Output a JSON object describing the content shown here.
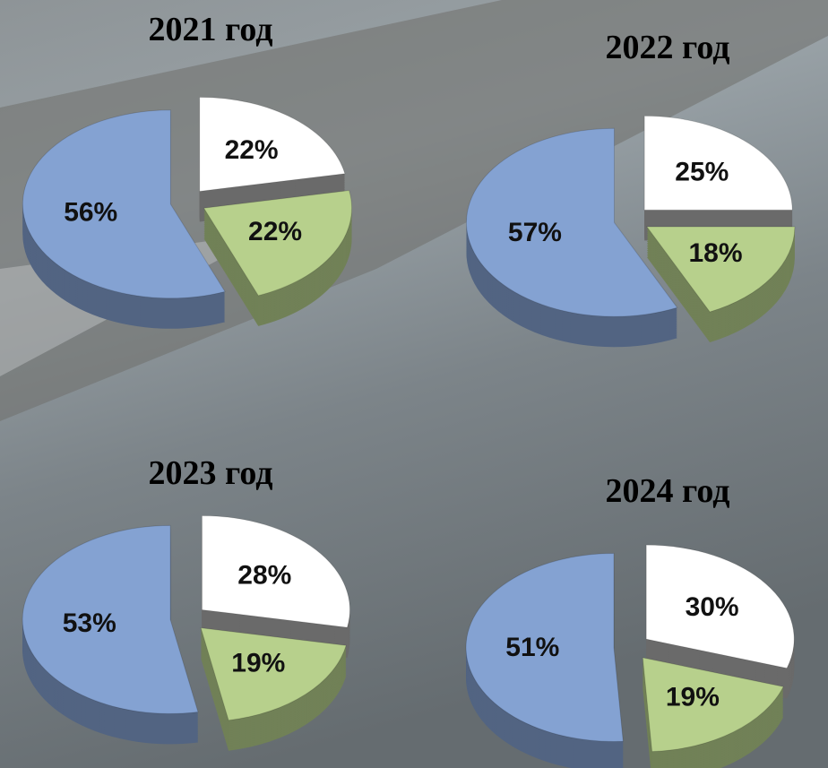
{
  "chart_data": [
    {
      "type": "pie",
      "title": "2021 год",
      "values": [
        22,
        22,
        56
      ],
      "value_labels": [
        "22%",
        "22%",
        "56%"
      ],
      "colors": [
        "#ffffff",
        "#b7d08c",
        "#84a2d2"
      ]
    },
    {
      "type": "pie",
      "title": "2022 год",
      "values": [
        25,
        18,
        57
      ],
      "value_labels": [
        "25%",
        "18%",
        "57%"
      ],
      "colors": [
        "#ffffff",
        "#b7d08c",
        "#84a2d2"
      ]
    },
    {
      "type": "pie",
      "title": "2023 год",
      "values": [
        28,
        19,
        53
      ],
      "value_labels": [
        "28%",
        "19%",
        "53%"
      ],
      "colors": [
        "#ffffff",
        "#b7d08c",
        "#84a2d2"
      ]
    },
    {
      "type": "pie",
      "title": "2024 год",
      "values": [
        30,
        19,
        51
      ],
      "value_labels": [
        "30%",
        "19%",
        "51%"
      ],
      "colors": [
        "#ffffff",
        "#b7d08c",
        "#84a2d2"
      ]
    }
  ]
}
